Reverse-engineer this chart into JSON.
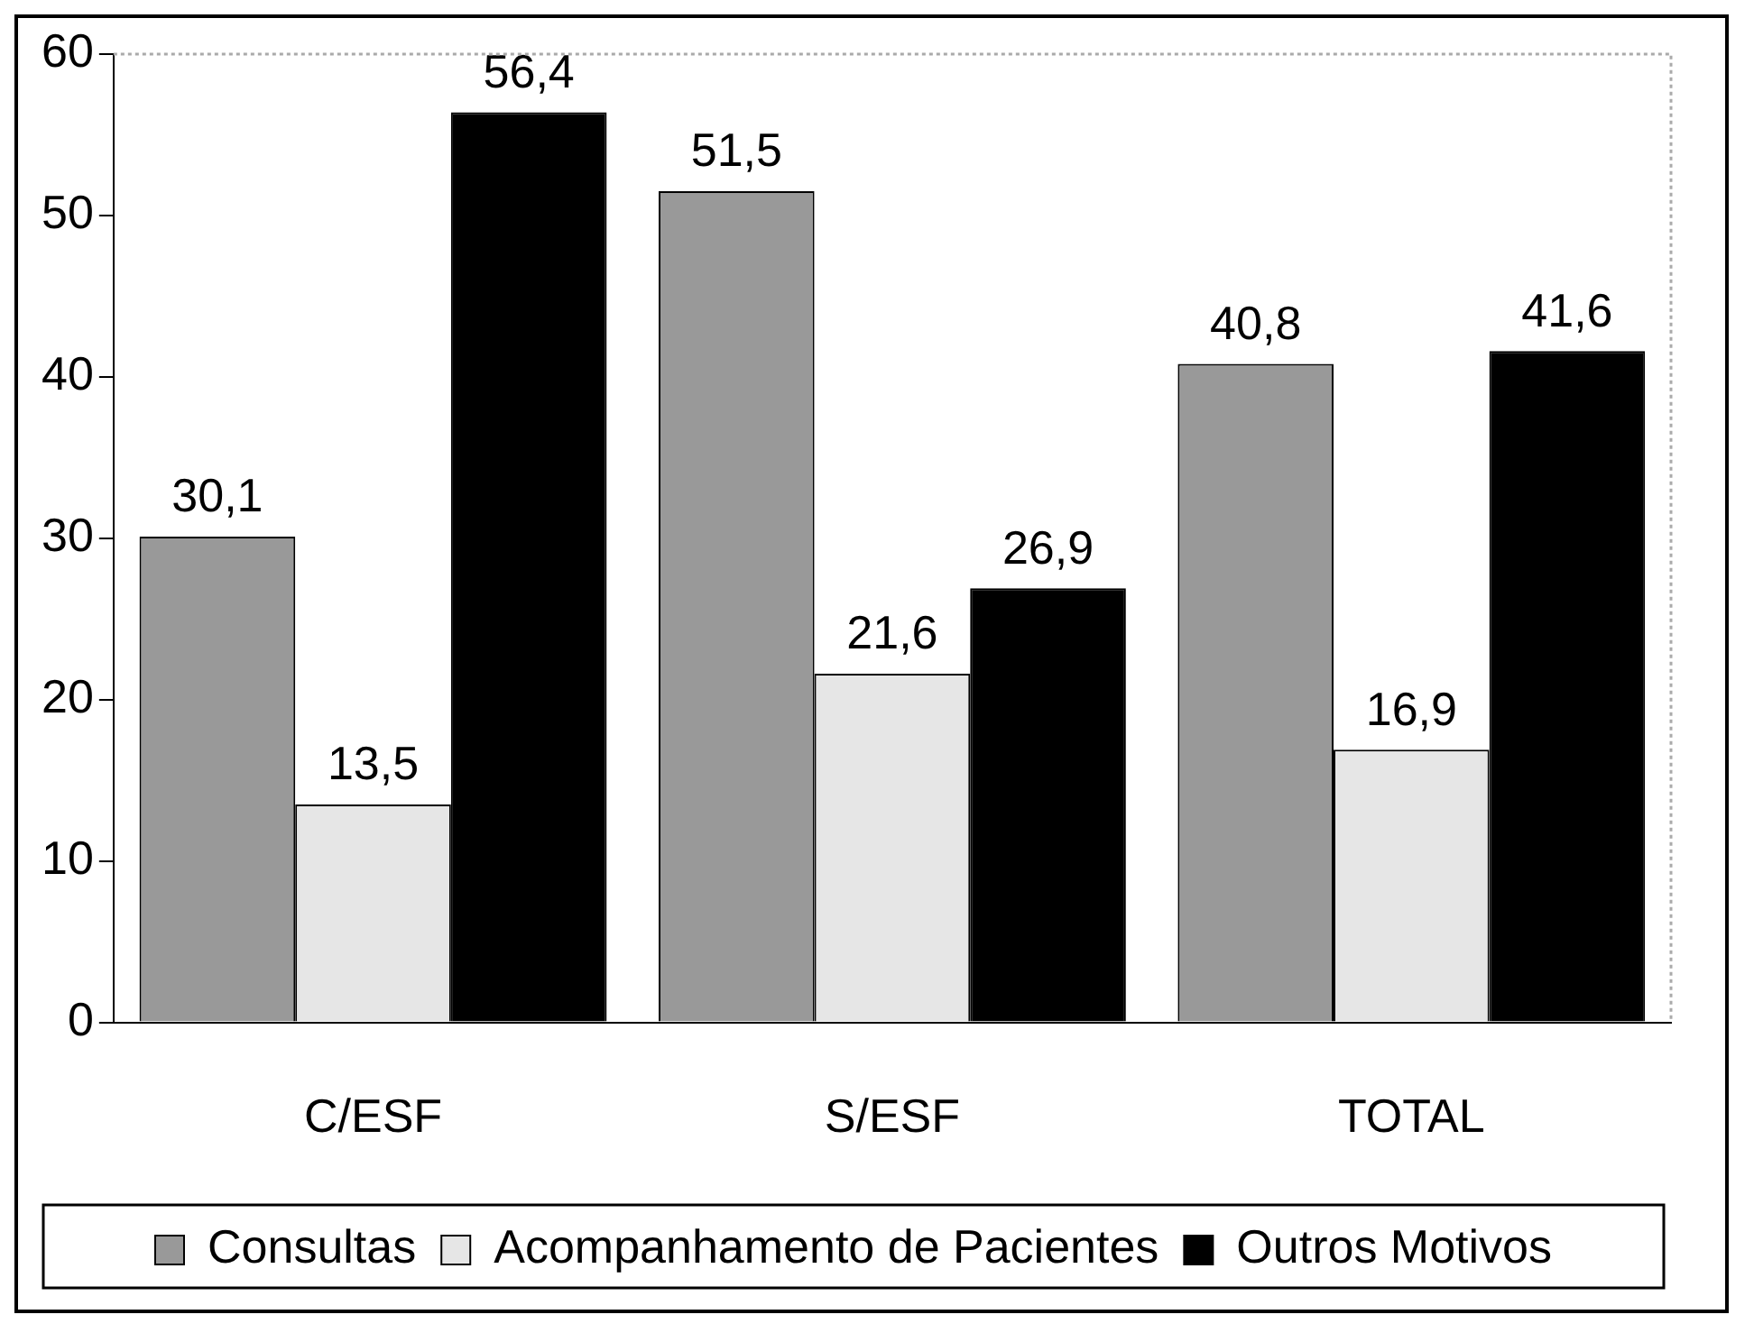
{
  "chart_data": {
    "type": "bar",
    "categories": [
      "C/ESF",
      "S/ESF",
      "TOTAL"
    ],
    "series": [
      {
        "name": "Consultas",
        "color": "#999999",
        "values": [
          30.1,
          51.5,
          40.8
        ],
        "value_labels": [
          "30,1",
          "51,5",
          "40,8"
        ]
      },
      {
        "name": "Acompanhamento de Pacientes",
        "color": "#e6e6e6",
        "values": [
          13.5,
          21.6,
          16.9
        ],
        "value_labels": [
          "13,5",
          "21,6",
          "16,9"
        ]
      },
      {
        "name": "Outros Motivos",
        "color": "#000000",
        "values": [
          56.4,
          26.9,
          41.6
        ],
        "value_labels": [
          "56,4",
          "26,9",
          "41,6"
        ]
      }
    ],
    "ylim": [
      0,
      60
    ],
    "yticks": [
      0,
      10,
      20,
      30,
      40,
      50,
      60
    ],
    "grid": false,
    "legend": "bottom"
  }
}
